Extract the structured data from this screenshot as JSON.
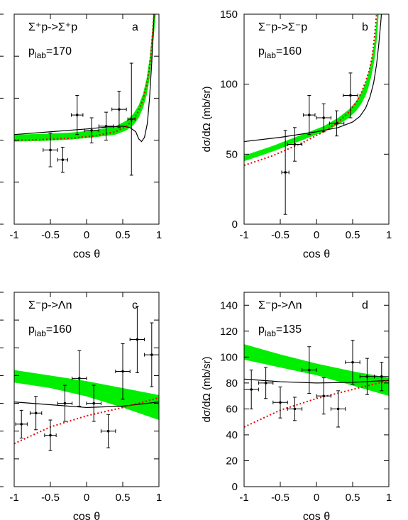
{
  "chart_data": [
    {
      "panel_label": "a",
      "type": "scatter",
      "reaction": "Σ⁺p->Σ⁺p",
      "plab_label": "p",
      "plab_sub": "lab",
      "plab_value": "=170",
      "xlabel": "cos θ",
      "ylabel": "",
      "xlim": [
        -1,
        1
      ],
      "ylim": [
        0,
        150
      ],
      "x_ticks": [
        "-1",
        "-0.5",
        "0",
        "0.5",
        "1"
      ],
      "y_ticks": [],
      "points": [
        {
          "x": -0.5,
          "y": 53,
          "yerr": 12,
          "xerr": 0.1
        },
        {
          "x": -0.33,
          "y": 46,
          "yerr": 9,
          "xerr": 0.07
        },
        {
          "x": -0.13,
          "y": 78,
          "yerr": 14,
          "xerr": 0.08
        },
        {
          "x": 0.07,
          "y": 67,
          "yerr": 9,
          "xerr": 0.1
        },
        {
          "x": 0.27,
          "y": 70,
          "yerr": 10,
          "xerr": 0.1
        },
        {
          "x": 0.45,
          "y": 82,
          "yerr": 13,
          "xerr": 0.1
        },
        {
          "x": 0.62,
          "y": 75,
          "yerr": 40,
          "xerr": 0.05
        }
      ],
      "curves": {
        "band": {
          "x": [
            -1,
            -0.6,
            -0.2,
            0.1,
            0.4,
            0.55,
            0.65,
            0.72,
            0.78,
            0.83,
            0.87,
            0.9,
            0.93,
            0.96
          ],
          "low": [
            59,
            59.5,
            60.5,
            62,
            64,
            67,
            71,
            76,
            83,
            92,
            104,
            118,
            135,
            152
          ],
          "high": [
            64,
            64.5,
            65.5,
            67,
            70,
            74,
            79,
            85,
            93,
            104,
            118,
            134,
            152,
            170
          ]
        },
        "dotted": {
          "x": [
            -1,
            -0.6,
            -0.2,
            0.1,
            0.4,
            0.55,
            0.65,
            0.72,
            0.78,
            0.83,
            0.87,
            0.9,
            0.93
          ],
          "y": [
            60,
            60.5,
            61.5,
            63,
            66,
            70,
            75,
            81,
            89,
            99,
            112,
            128,
            150
          ]
        },
        "solid": {
          "x": [
            -1,
            -0.5,
            0,
            0.3,
            0.5,
            0.6,
            0.68,
            0.72,
            0.76,
            0.8,
            0.84,
            0.87,
            0.9,
            0.92,
            0.94
          ],
          "y": [
            64,
            66,
            68,
            69.5,
            70,
            69,
            66,
            61,
            59,
            62,
            72,
            90,
            115,
            135,
            160
          ]
        }
      }
    },
    {
      "panel_label": "b",
      "type": "scatter",
      "reaction": "Σ⁻p->Σ⁻p",
      "plab_label": "p",
      "plab_sub": "lab",
      "plab_value": "=160",
      "xlabel": "cos θ",
      "ylabel": "dσ/dΩ (mb/sr)",
      "xlim": [
        -1,
        1
      ],
      "ylim": [
        0,
        150
      ],
      "x_ticks": [
        "-1",
        "-0.5",
        "0",
        "0.5",
        "1"
      ],
      "y_ticks": [
        "0",
        "50",
        "100",
        "150"
      ],
      "points": [
        {
          "x": -0.43,
          "y": 37,
          "yerr": 30,
          "xerr": 0.05
        },
        {
          "x": -0.3,
          "y": 57,
          "yerr": 12,
          "xerr": 0.1
        },
        {
          "x": -0.1,
          "y": 78,
          "yerr": 14,
          "xerr": 0.08
        },
        {
          "x": 0.1,
          "y": 76,
          "yerr": 10,
          "xerr": 0.1
        },
        {
          "x": 0.28,
          "y": 72,
          "yerr": 9,
          "xerr": 0.1
        },
        {
          "x": 0.47,
          "y": 92,
          "yerr": 16,
          "xerr": 0.1
        }
      ],
      "curves": {
        "band": {
          "x": [
            -1,
            -0.6,
            -0.2,
            0.1,
            0.3,
            0.45,
            0.55,
            0.62,
            0.68,
            0.72,
            0.76,
            0.8,
            0.83,
            0.86
          ],
          "low": [
            45,
            52,
            60,
            66,
            71,
            76,
            81,
            86,
            92,
            98,
            106,
            117,
            130,
            150
          ],
          "high": [
            49,
            56,
            64,
            70,
            76,
            82,
            88,
            94,
            101,
            108,
            117,
            130,
            145,
            165
          ]
        },
        "dotted": {
          "x": [
            -1,
            -0.6,
            -0.2,
            0.1,
            0.3,
            0.45,
            0.55,
            0.62,
            0.68,
            0.73,
            0.77,
            0.8,
            0.83
          ],
          "y": [
            42,
            49,
            58,
            66,
            73,
            80,
            87,
            94,
            102,
            110,
            120,
            133,
            150
          ]
        },
        "solid": {
          "x": [
            -1,
            -0.5,
            0,
            0.3,
            0.5,
            0.6,
            0.68,
            0.74,
            0.79,
            0.83,
            0.86,
            0.89,
            0.91
          ],
          "y": [
            59,
            62,
            66,
            69,
            73,
            77,
            83,
            91,
            101,
            114,
            128,
            145,
            160
          ]
        }
      }
    },
    {
      "panel_label": "c",
      "type": "scatter",
      "reaction": "Σ⁻p->Λn",
      "plab_label": "p",
      "plab_sub": "lab",
      "plab_value": "=160",
      "xlabel": "cos θ",
      "ylabel": "",
      "xlim": [
        -1,
        1
      ],
      "ylim": [
        0,
        140
      ],
      "x_ticks": [
        "-1",
        "-0.5",
        "0",
        "0.5",
        "1"
      ],
      "y_ticks": [],
      "points": [
        {
          "x": -0.9,
          "y": 45,
          "yerr": 10,
          "xerr": 0.08
        },
        {
          "x": -0.7,
          "y": 53,
          "yerr": 12,
          "xerr": 0.08
        },
        {
          "x": -0.5,
          "y": 37,
          "yerr": 11,
          "xerr": 0.08
        },
        {
          "x": -0.3,
          "y": 60,
          "yerr": 13,
          "xerr": 0.1
        },
        {
          "x": -0.1,
          "y": 78,
          "yerr": 20,
          "xerr": 0.1
        },
        {
          "x": 0.1,
          "y": 60,
          "yerr": 13,
          "xerr": 0.1
        },
        {
          "x": 0.3,
          "y": 40,
          "yerr": 12,
          "xerr": 0.1
        },
        {
          "x": 0.5,
          "y": 83,
          "yerr": 20,
          "xerr": 0.1
        },
        {
          "x": 0.7,
          "y": 106,
          "yerr": 24,
          "xerr": 0.1
        },
        {
          "x": 0.9,
          "y": 95,
          "yerr": 23,
          "xerr": 0.1
        }
      ],
      "curves": {
        "band": {
          "x": [
            -1,
            -0.5,
            0,
            0.5,
            1
          ],
          "low": [
            75,
            71,
            65,
            57,
            48
          ],
          "high": [
            84,
            80,
            76,
            71,
            66
          ]
        },
        "dotted": {
          "x": [
            -1,
            -0.5,
            0,
            0.5,
            1
          ],
          "y": [
            31,
            43,
            51,
            57,
            64
          ]
        },
        "solid": {
          "x": [
            -1,
            -0.5,
            0,
            0.5,
            1
          ],
          "y": [
            61,
            59,
            57,
            58,
            61
          ]
        }
      }
    },
    {
      "panel_label": "d",
      "type": "scatter",
      "reaction": "Σ⁻p->Λn",
      "plab_label": "p",
      "plab_sub": "lab",
      "plab_value": "=135",
      "xlabel": "cos θ",
      "ylabel": "dσ/dΩ (mb/sr)",
      "xlim": [
        -1,
        1
      ],
      "ylim": [
        0,
        150
      ],
      "x_ticks": [
        "-1",
        "-0.5",
        "0",
        "0.5",
        "1"
      ],
      "y_ticks": [
        "0",
        "20",
        "40",
        "60",
        "80",
        "100",
        "120",
        "140"
      ],
      "points": [
        {
          "x": -0.9,
          "y": 75,
          "yerr": 15,
          "xerr": 0.1
        },
        {
          "x": -0.7,
          "y": 80,
          "yerr": 12,
          "xerr": 0.1
        },
        {
          "x": -0.5,
          "y": 65,
          "yerr": 12,
          "xerr": 0.1
        },
        {
          "x": -0.3,
          "y": 60,
          "yerr": 9,
          "xerr": 0.1
        },
        {
          "x": -0.1,
          "y": 90,
          "yerr": 18,
          "xerr": 0.1
        },
        {
          "x": 0.1,
          "y": 70,
          "yerr": 14,
          "xerr": 0.1
        },
        {
          "x": 0.3,
          "y": 60,
          "yerr": 14,
          "xerr": 0.1
        },
        {
          "x": 0.5,
          "y": 96,
          "yerr": 17,
          "xerr": 0.1
        },
        {
          "x": 0.7,
          "y": 85,
          "yerr": 14,
          "xerr": 0.1
        },
        {
          "x": 0.9,
          "y": 85,
          "yerr": 11,
          "xerr": 0.1
        }
      ],
      "curves": {
        "band": {
          "x": [
            -1,
            -0.5,
            0,
            0.5,
            1
          ],
          "low": [
            98,
            92,
            86,
            78,
            70
          ],
          "high": [
            110,
            102,
            95,
            89,
            84
          ]
        },
        "dotted": {
          "x": [
            -1,
            -0.5,
            0,
            0.5,
            1
          ],
          "y": [
            46,
            59,
            68,
            75,
            82
          ]
        },
        "solid": {
          "x": [
            -1,
            -0.5,
            0,
            0.5,
            1
          ],
          "y": [
            83,
            81,
            80,
            80.5,
            82
          ]
        }
      }
    }
  ]
}
